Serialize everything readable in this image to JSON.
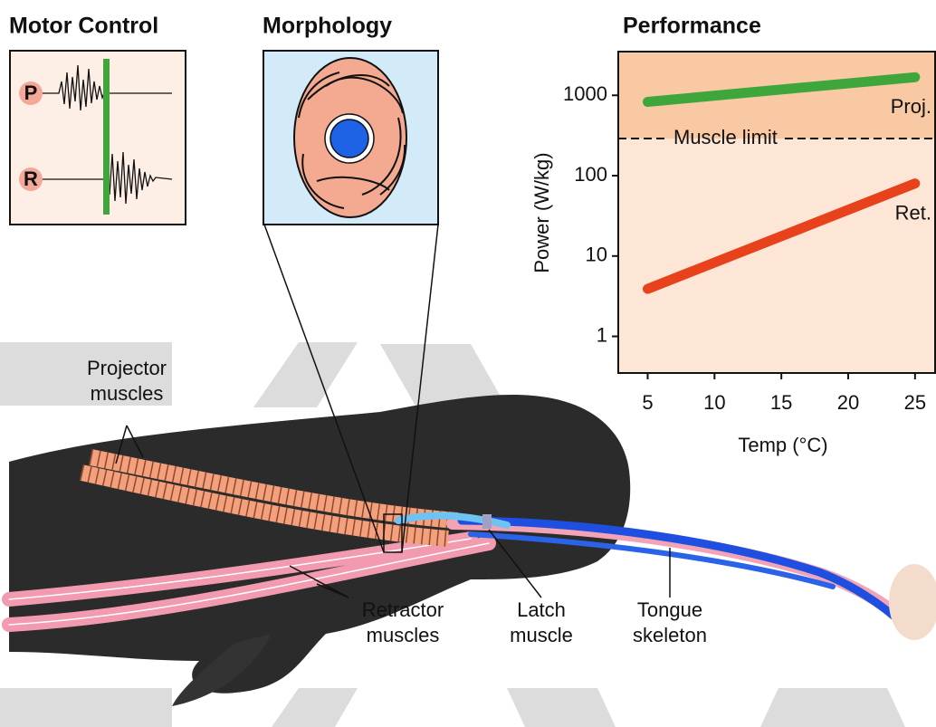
{
  "motor_control": {
    "title": "Motor Control",
    "traces": [
      "P",
      "R"
    ]
  },
  "morphology": {
    "title": "Morphology"
  },
  "chart_data": {
    "type": "line",
    "title": "Performance",
    "y_label": "Power (W/kg)",
    "x_label": "Temp (°C)",
    "x": [
      5,
      25
    ],
    "xlim": [
      2.8,
      26.5
    ],
    "xticks": [
      5,
      10,
      15,
      20,
      25
    ],
    "ylim": [
      0.35,
      3500
    ],
    "yticks": [
      1,
      10,
      100,
      1000
    ],
    "y_scale": "log",
    "series": [
      {
        "name": "Proj.",
        "color": "#3ea63a",
        "values": [
          830,
          1680
        ]
      },
      {
        "name": "Ret.",
        "color": "#e8421c",
        "values": [
          3.9,
          80
        ]
      }
    ],
    "reference_line": {
      "label": "Muscle limit",
      "value": 290,
      "above_color": "#f9c9a4",
      "below_color": "#fde6d6"
    }
  },
  "annotations": [
    {
      "lines": [
        "Projector",
        "muscles"
      ]
    },
    {
      "lines": [
        "Retractor",
        "muscles"
      ]
    },
    {
      "lines": [
        "Latch",
        "muscle"
      ]
    },
    {
      "lines": [
        "Tongue",
        "skeleton"
      ]
    }
  ]
}
